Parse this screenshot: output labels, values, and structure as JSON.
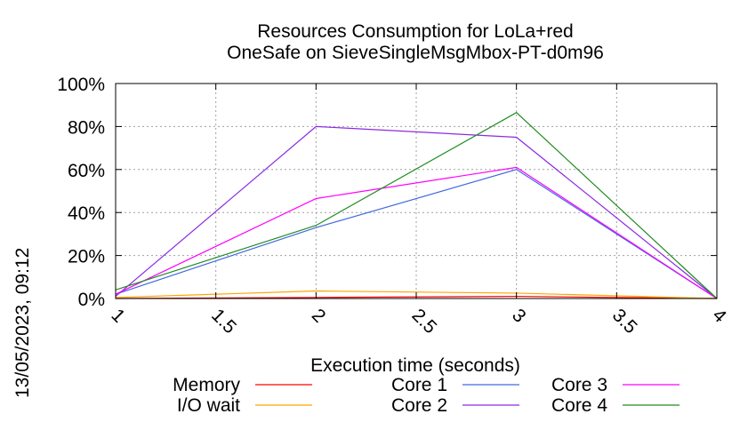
{
  "chart_data": {
    "type": "line",
    "title": [
      "Resources Consumption for LoLa+red",
      "OneSafe on SieveSingleMsgMbox-PT-d0m96"
    ],
    "xlabel": "Execution time (seconds)",
    "ylabel": "",
    "side_label": "13/05/2023, 09:12",
    "xlim": [
      1,
      4
    ],
    "ylim": [
      0,
      100
    ],
    "x_ticks": [
      1,
      1.5,
      2,
      2.5,
      3,
      3.5,
      4
    ],
    "x_tick_labels": [
      "1",
      "1.5",
      "2",
      "2.5",
      "3",
      "3.5",
      "4"
    ],
    "y_ticks": [
      0,
      20,
      40,
      60,
      80,
      100
    ],
    "y_tick_labels": [
      "0%",
      "20%",
      "40%",
      "60%",
      "80%",
      "100%"
    ],
    "grid": true,
    "legend_position": "bottom",
    "x": [
      1,
      2,
      3,
      4
    ],
    "series": [
      {
        "name": "Memory",
        "color": "#ff0000",
        "values": [
          0,
          0.5,
          1,
          0
        ]
      },
      {
        "name": "I/O wait",
        "color": "#ffa500",
        "values": [
          0.5,
          3.5,
          2.5,
          0
        ]
      },
      {
        "name": "Core 1",
        "color": "#4169e1",
        "values": [
          2,
          33,
          60,
          0
        ]
      },
      {
        "name": "Core 2",
        "color": "#8a2be2",
        "values": [
          1,
          80,
          75,
          0
        ]
      },
      {
        "name": "Core 3",
        "color": "#ff00ff",
        "values": [
          2,
          46.5,
          61,
          0
        ]
      },
      {
        "name": "Core 4",
        "color": "#228b22",
        "values": [
          4,
          34,
          86.5,
          0
        ]
      }
    ]
  }
}
